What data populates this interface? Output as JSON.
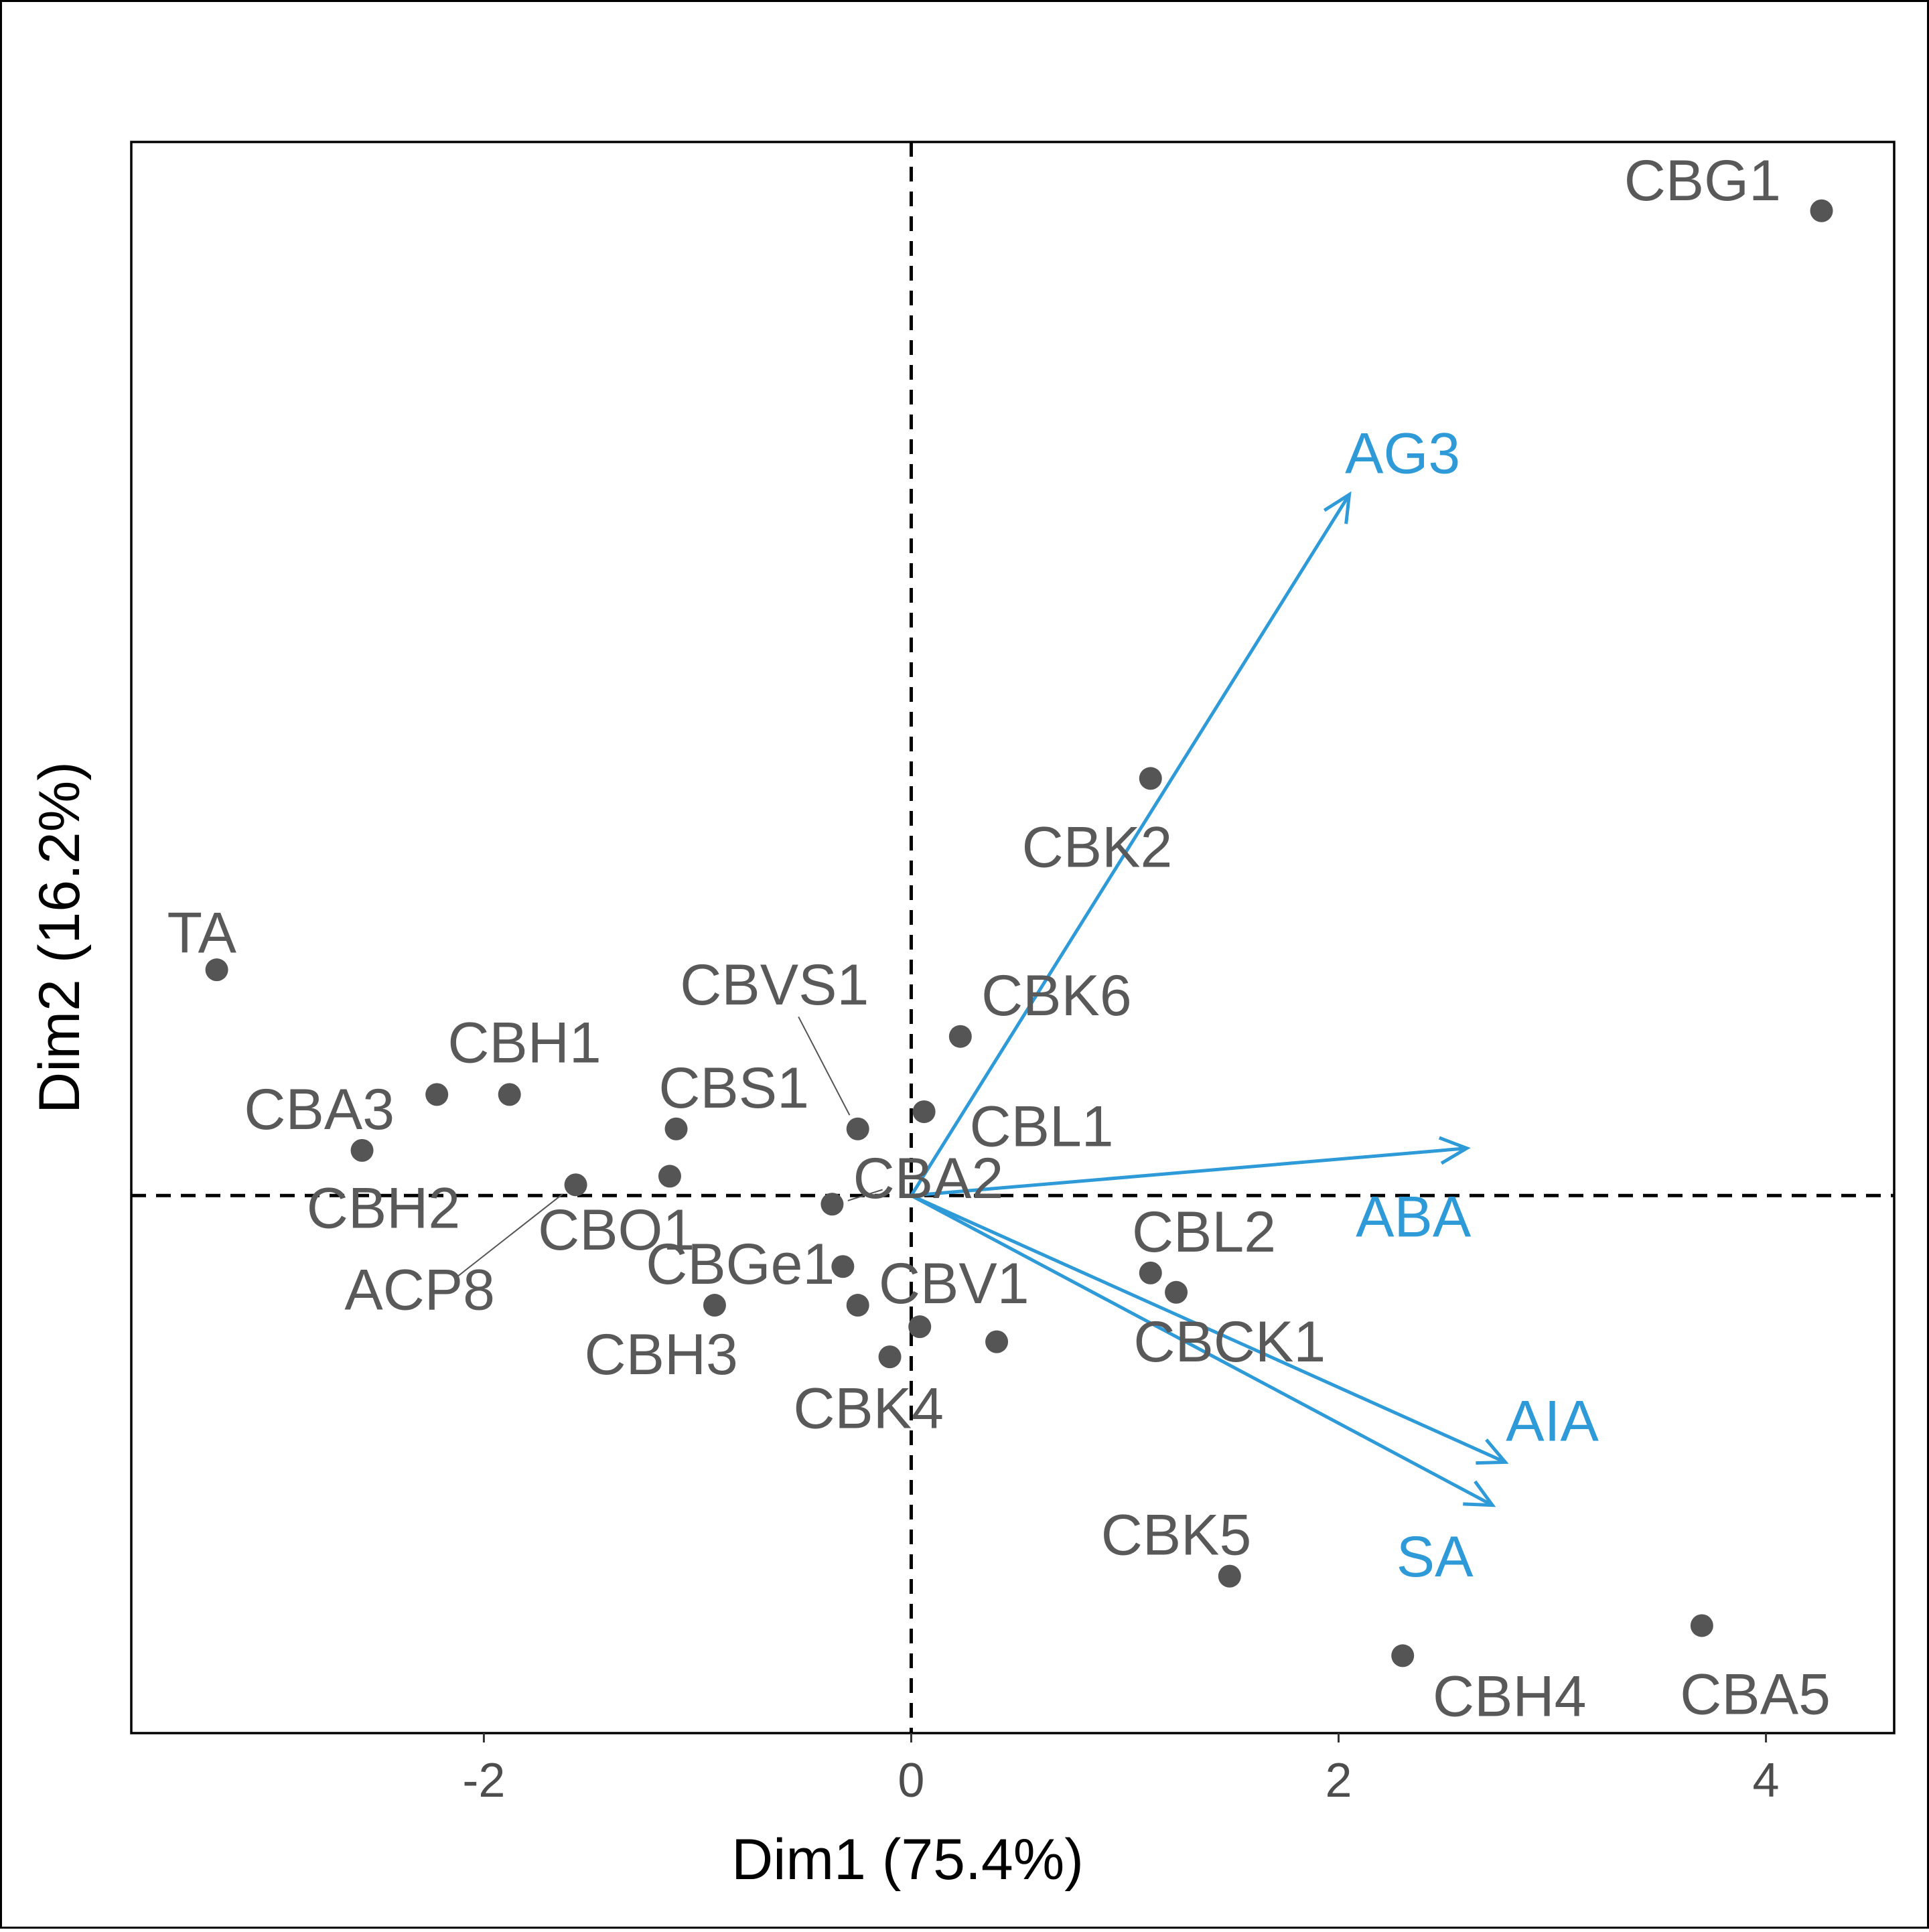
{
  "chart_data": {
    "type": "scatter",
    "subtype": "pca-biplot",
    "title": "",
    "xlabel": "Dim1 (75.4%)",
    "ylabel": "Dim2 (16.2%)",
    "xlim": [
      -3.65,
      4.6
    ],
    "ylim": [
      -2.5,
      4.9
    ],
    "x_ticks": [
      -2,
      0,
      2,
      4
    ],
    "x_tick_labels": [
      "-2",
      "0",
      "2",
      "4"
    ],
    "y_ticks": [],
    "grid": false,
    "reference_lines": {
      "x": 0,
      "y": 0,
      "style": "dashed"
    },
    "point_color": "#555555",
    "label_color": "#595959",
    "vector_color": "#2E9AD8",
    "points": [
      {
        "label": "CBG1",
        "x": 4.26,
        "y": 4.58,
        "label_dx": -0.19,
        "label_dy": 0.12,
        "anchor": "end"
      },
      {
        "label": "CBK2",
        "x": 1.12,
        "y": 1.94,
        "label_dx": -0.25,
        "label_dy": -0.34,
        "anchor": "middle"
      },
      {
        "label": "TA",
        "x": -3.25,
        "y": 1.05,
        "label_dx": -0.07,
        "label_dy": 0.15,
        "anchor": "middle"
      },
      {
        "label": "CBH1",
        "x": -1.88,
        "y": 0.47,
        "label_dx": 0.07,
        "label_dy": 0.22,
        "anchor": "middle"
      },
      {
        "label": "CBA3",
        "x": -2.22,
        "y": 0.47,
        "label_dx": -0.55,
        "label_dy": -0.09,
        "anchor": "middle"
      },
      {
        "label": "CBH2",
        "x": -2.57,
        "y": 0.21,
        "label_dx": 0.1,
        "label_dy": -0.29,
        "anchor": "middle"
      },
      {
        "label": "CBVS1",
        "x": -0.25,
        "y": 0.31,
        "label_dx": -0.39,
        "label_dy": 0.65,
        "anchor": "middle",
        "leader": true
      },
      {
        "label": "CBK6",
        "x": 0.23,
        "y": 0.74,
        "label_dx": 0.45,
        "label_dy": 0.17,
        "anchor": "middle"
      },
      {
        "label": "CBS1",
        "x": -1.1,
        "y": 0.31,
        "label_dx": 0.27,
        "label_dy": 0.17,
        "anchor": "middle"
      },
      {
        "label": "CBL1",
        "x": 0.06,
        "y": 0.39,
        "label_dx": 0.55,
        "label_dy": -0.09,
        "anchor": "middle"
      },
      {
        "label": "ACP8",
        "x": -1.57,
        "y": 0.05,
        "label_dx": -0.73,
        "label_dy": -0.51,
        "anchor": "middle",
        "leader": true
      },
      {
        "label": "CBO1",
        "x": -1.13,
        "y": 0.09,
        "label_dx": -0.25,
        "label_dy": -0.27,
        "anchor": "middle"
      },
      {
        "label": "CBA2",
        "x": -0.37,
        "y": -0.04,
        "label_dx": 0.45,
        "label_dy": 0.1,
        "anchor": "middle",
        "leader": true
      },
      {
        "label": "CBGe1",
        "x": -0.32,
        "y": -0.33,
        "label_dx": -0.48,
        "label_dy": -0.01,
        "anchor": "middle"
      },
      {
        "label": "CBH3",
        "x": -0.92,
        "y": -0.51,
        "label_dx": -0.25,
        "label_dy": -0.25,
        "anchor": "middle"
      },
      {
        "label": "CBV1",
        "x": -0.25,
        "y": -0.51,
        "label_dx": 0.45,
        "label_dy": 0.08,
        "anchor": "middle"
      },
      {
        "label": "CBK4",
        "x": -0.1,
        "y": -0.75,
        "label_dx": -0.1,
        "label_dy": -0.26,
        "anchor": "middle"
      },
      {
        "label": "CBL2",
        "x": 1.12,
        "y": -0.36,
        "label_dx": 0.25,
        "label_dy": 0.17,
        "anchor": "middle"
      },
      {
        "label": "CBCK1",
        "x": 1.24,
        "y": -0.45,
        "label_dx": 0.25,
        "label_dy": -0.25,
        "anchor": "middle"
      },
      {
        "label": "",
        "x": 0.04,
        "y": -0.61
      },
      {
        "label": "",
        "x": 0.4,
        "y": -0.68
      },
      {
        "label": "CBK5",
        "x": 1.49,
        "y": -1.77,
        "label_dx": -0.25,
        "label_dy": 0.17,
        "anchor": "middle"
      },
      {
        "label": "CBH4",
        "x": 2.3,
        "y": -2.14,
        "label_dx": 0.5,
        "label_dy": -0.21,
        "anchor": "middle"
      },
      {
        "label": "CBA5",
        "x": 3.7,
        "y": -2.0,
        "label_dx": 0.25,
        "label_dy": -0.34,
        "anchor": "middle"
      }
    ],
    "vectors": [
      {
        "label": "AG3",
        "x": 2.05,
        "y": 3.26,
        "label_x": 2.3,
        "label_y": 3.43
      },
      {
        "label": "ABA",
        "x": 2.6,
        "y": 0.22,
        "label_x": 2.35,
        "label_y": -0.12
      },
      {
        "label": "AIA",
        "x": 2.78,
        "y": -1.24,
        "label_x": 3.0,
        "label_y": -1.07
      },
      {
        "label": "SA",
        "x": 2.72,
        "y": -1.44,
        "label_x": 2.45,
        "label_y": -1.7
      }
    ]
  }
}
